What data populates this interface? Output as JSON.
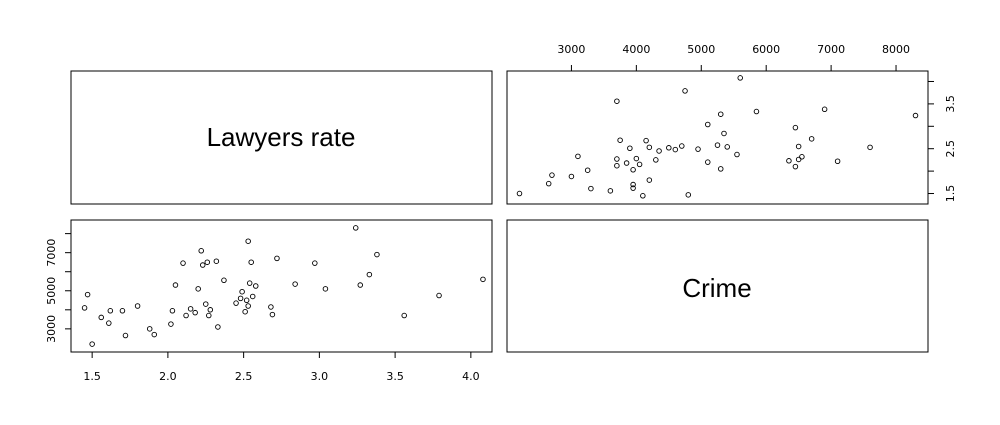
{
  "chart_data": {
    "type": "scatter",
    "variables": [
      "Lawyers rate",
      "Crime"
    ],
    "axes": {
      "lawyers": {
        "range": [
          1.4,
          4.1
        ],
        "ticks": [
          "1.5",
          "2.0",
          "2.5",
          "3.0",
          "3.5",
          "4.0"
        ]
      },
      "crime": {
        "range": [
          2100,
          8400
        ],
        "ticks": [
          "3000",
          "4000",
          "5000",
          "6000",
          "7000",
          "8000"
        ]
      }
    },
    "points": [
      [
        1.45,
        4100
      ],
      [
        1.47,
        4800
      ],
      [
        1.5,
        2200
      ],
      [
        1.56,
        3600
      ],
      [
        1.61,
        3300
      ],
      [
        1.62,
        3950
      ],
      [
        1.7,
        3950
      ],
      [
        1.72,
        2650
      ],
      [
        1.8,
        4200
      ],
      [
        1.88,
        3000
      ],
      [
        1.91,
        2700
      ],
      [
        2.02,
        3250
      ],
      [
        2.03,
        3950
      ],
      [
        2.05,
        5300
      ],
      [
        2.1,
        6450
      ],
      [
        2.12,
        3700
      ],
      [
        2.15,
        4050
      ],
      [
        2.18,
        3850
      ],
      [
        2.2,
        5100
      ],
      [
        2.22,
        7100
      ],
      [
        2.23,
        6350
      ],
      [
        2.25,
        4300
      ],
      [
        2.26,
        6500
      ],
      [
        2.27,
        3700
      ],
      [
        2.28,
        4000
      ],
      [
        2.32,
        6550
      ],
      [
        2.33,
        3100
      ],
      [
        2.37,
        5550
      ],
      [
        2.45,
        4350
      ],
      [
        2.48,
        4600
      ],
      [
        2.49,
        4950
      ],
      [
        2.51,
        3900
      ],
      [
        2.52,
        4500
      ],
      [
        2.53,
        7600
      ],
      [
        2.53,
        4200
      ],
      [
        2.54,
        5400
      ],
      [
        2.55,
        6500
      ],
      [
        2.56,
        4700
      ],
      [
        2.58,
        5250
      ],
      [
        2.68,
        4150
      ],
      [
        2.69,
        3750
      ],
      [
        2.72,
        6700
      ],
      [
        2.84,
        5350
      ],
      [
        2.97,
        6450
      ],
      [
        3.04,
        5100
      ],
      [
        3.24,
        8300
      ],
      [
        3.27,
        5300
      ],
      [
        3.33,
        5850
      ],
      [
        3.38,
        6900
      ],
      [
        3.56,
        3700
      ],
      [
        3.79,
        4750
      ],
      [
        4.08,
        5600
      ]
    ]
  },
  "panels": {
    "diag_top_left": "Lawyers rate",
    "diag_bottom_right": "Crime"
  }
}
